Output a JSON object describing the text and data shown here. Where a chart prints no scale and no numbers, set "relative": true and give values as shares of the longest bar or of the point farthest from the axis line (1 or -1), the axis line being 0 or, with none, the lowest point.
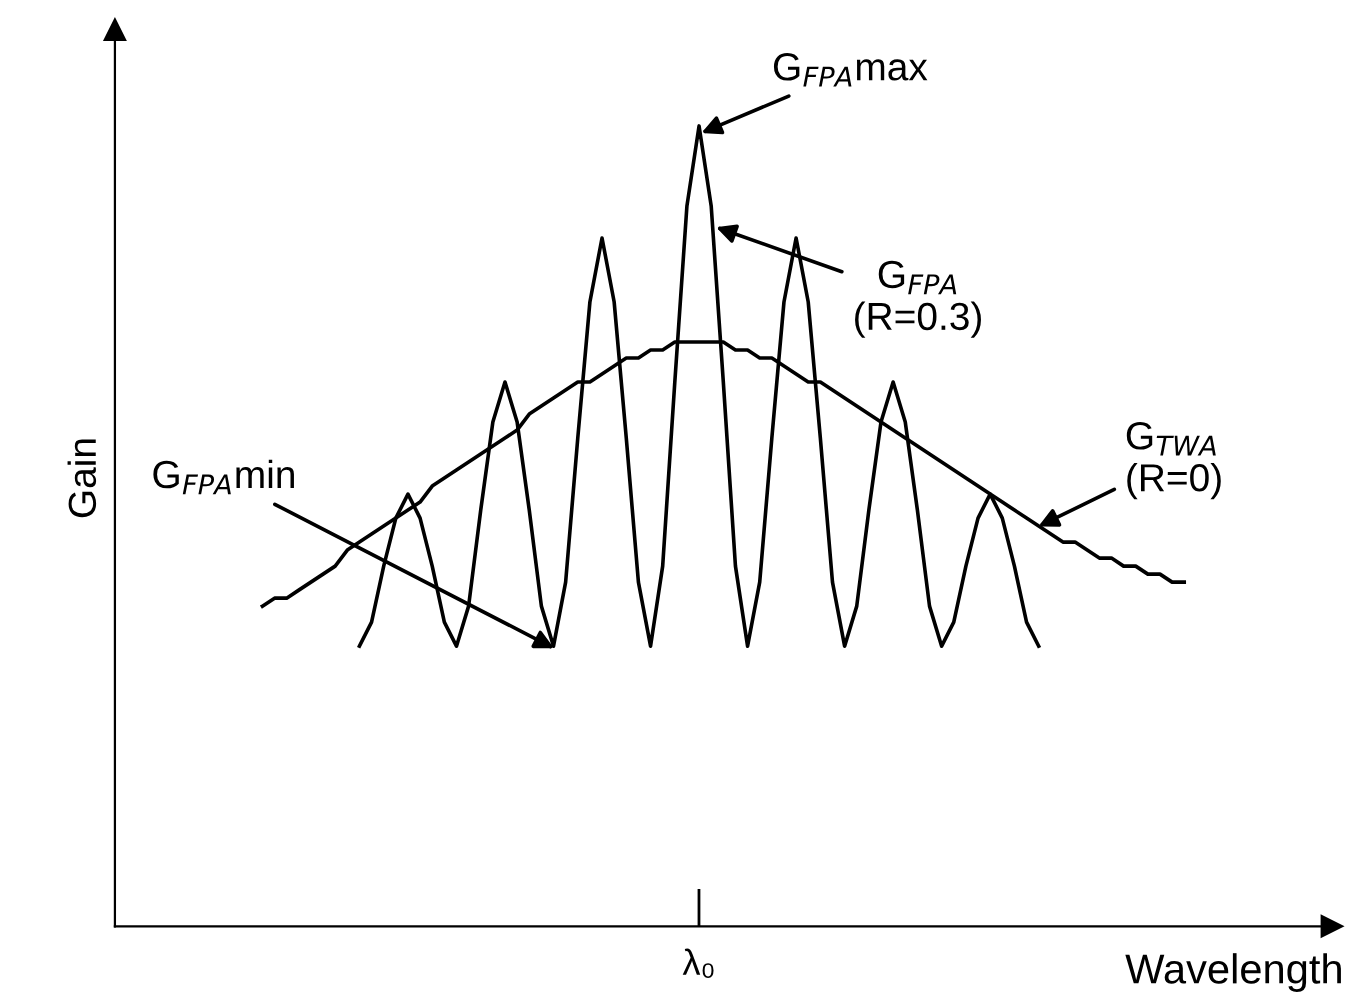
{
  "chart_data": {
    "type": "line",
    "relative": true,
    "xlabel": "Wavelength",
    "ylabel": "Gain",
    "marker": "none",
    "line_style": "solid",
    "categories": [
      null,
      null,
      null,
      null,
      null,
      null,
      null,
      null,
      null,
      null,
      null,
      null,
      null,
      null,
      null,
      null,
      null,
      null,
      null,
      null,
      null,
      null,
      null,
      null,
      null,
      null,
      null,
      null,
      null,
      null,
      null,
      null,
      null,
      null,
      null,
      null,
      null,
      null,
      null,
      null,
      null,
      null,
      null,
      null,
      null,
      null,
      null,
      null,
      null,
      null,
      null,
      null,
      null,
      null,
      null,
      null,
      null,
      null,
      null,
      null,
      null,
      null,
      null,
      null,
      null,
      null,
      null,
      null,
      null,
      null,
      null,
      null,
      null,
      null,
      null,
      null,
      null
    ],
    "series": [
      {
        "color": "#000000",
        "values": [
          null,
          null,
          null,
          null,
          null,
          null,
          null,
          null,
          0.35,
          0.38,
          0.45,
          0.51,
          0.54,
          0.51,
          0.45,
          0.38,
          0.35,
          0.4,
          0.52,
          0.63,
          0.68,
          0.63,
          0.52,
          0.4,
          0.35,
          0.43,
          0.61,
          0.78,
          0.86,
          0.78,
          0.61,
          0.43,
          0.35,
          0.45,
          0.68,
          0.9,
          1,
          0.9,
          0.68,
          0.45,
          0.35,
          0.43,
          0.61,
          0.78,
          0.86,
          0.78,
          0.61,
          0.43,
          0.35,
          0.4,
          0.52,
          0.63,
          0.68,
          0.63,
          0.52,
          0.4,
          0.35,
          0.38,
          0.45,
          0.51,
          0.54,
          0.51,
          0.45,
          0.38,
          0.35,
          null,
          null,
          null,
          null,
          null,
          null,
          null,
          null,
          null,
          null,
          null,
          null
        ]
      },
      {
        "color": "#000000",
        "values": [
          0.4,
          0.41,
          0.41,
          0.42,
          0.43,
          0.44,
          0.45,
          0.47,
          0.48,
          0.49,
          0.5,
          0.51,
          0.52,
          0.53,
          0.55,
          0.56,
          0.57,
          0.58,
          0.59,
          0.6,
          0.61,
          0.62,
          0.64,
          0.65,
          0.66,
          0.67,
          0.68,
          0.68,
          0.69,
          0.7,
          0.71,
          0.71,
          0.72,
          0.72,
          0.73,
          0.73,
          0.73,
          0.73,
          0.73,
          0.72,
          0.72,
          0.71,
          0.71,
          0.7,
          0.69,
          0.68,
          0.68,
          0.67,
          0.66,
          0.65,
          0.64,
          0.63,
          0.62,
          0.61,
          0.6,
          0.59,
          0.58,
          0.57,
          0.56,
          0.55,
          0.54,
          0.53,
          0.52,
          0.51,
          0.5,
          0.49,
          0.48,
          0.48,
          0.47,
          0.46,
          0.46,
          0.45,
          0.45,
          0.44,
          0.44,
          0.43,
          0.43
        ]
      }
    ],
    "annotations": [
      "G$_{FPA}$max",
      "G$_{FPA}$\n(R=0.3)",
      "G$_{FPA}$min",
      "G$_{TWA}$\n(R=0)",
      "λ₀"
    ]
  }
}
